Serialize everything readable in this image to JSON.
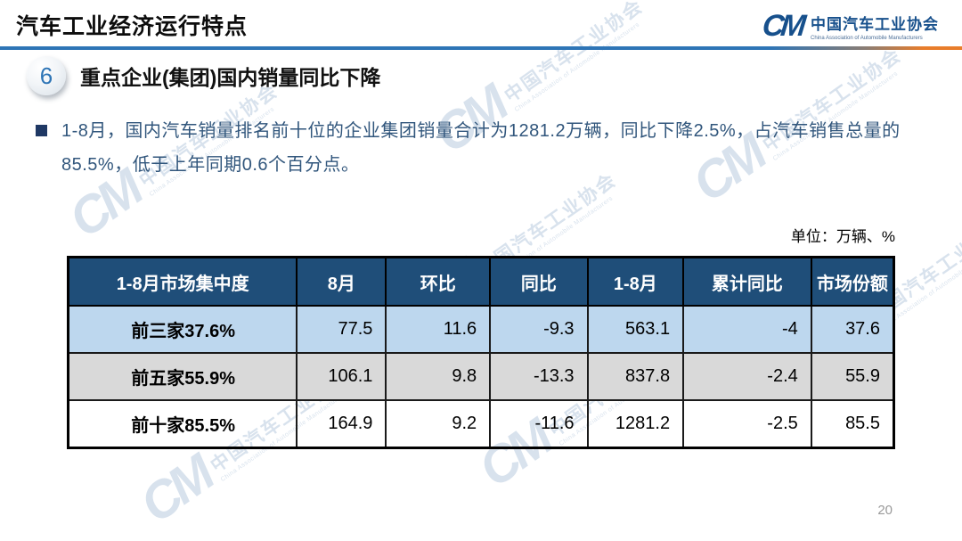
{
  "slide": {
    "title": "汽车工业经济运行特点",
    "page_number": "20"
  },
  "logo": {
    "glyph": "CM",
    "name_cn": "中国汽车工业协会",
    "name_en": "China Association of Automobile Manufacturers"
  },
  "section": {
    "number": "6",
    "title": "重点企业(集团)国内销量同比下降"
  },
  "body": {
    "bullet_text": "1-8月，国内汽车销量排名前十位的企业集团销量合计为1281.2万辆，同比下降2.5%，占汽车销售总量的85.5%，低于上年同期0.6个百分点。"
  },
  "table": {
    "unit_label": "单位：万辆、%",
    "headers": [
      "1-8月市场集中度",
      "8月",
      "环比",
      "同比",
      "1-8月",
      "累计同比",
      "市场份额"
    ],
    "rows": [
      {
        "label": "前三家37.6%",
        "values": [
          "77.5",
          "11.6",
          "-9.3",
          "563.1",
          "-4",
          "37.6"
        ]
      },
      {
        "label": "前五家55.9%",
        "values": [
          "106.1",
          "9.8",
          "-13.3",
          "837.8",
          "-2.4",
          "55.9"
        ]
      },
      {
        "label": "前十家85.5%",
        "values": [
          "164.9",
          "9.2",
          "-11.6",
          "1281.2",
          "-2.5",
          "85.5"
        ]
      }
    ]
  },
  "watermark": {
    "glyph": "CM",
    "text_cn": "中国汽车工业协会",
    "text_en": "China Association of Automobile Manufacturers"
  },
  "colors": {
    "table_header_bg": "#1F4E79",
    "row_blue_bg": "#BDD7EE",
    "row_gray_bg": "#D9D9D9",
    "accent_blue": "#2E75B6",
    "accent_orange": "#E87D2B",
    "body_text": "#31567C",
    "logo_blue": "#17508C",
    "page_number": "#9A9A9A"
  }
}
